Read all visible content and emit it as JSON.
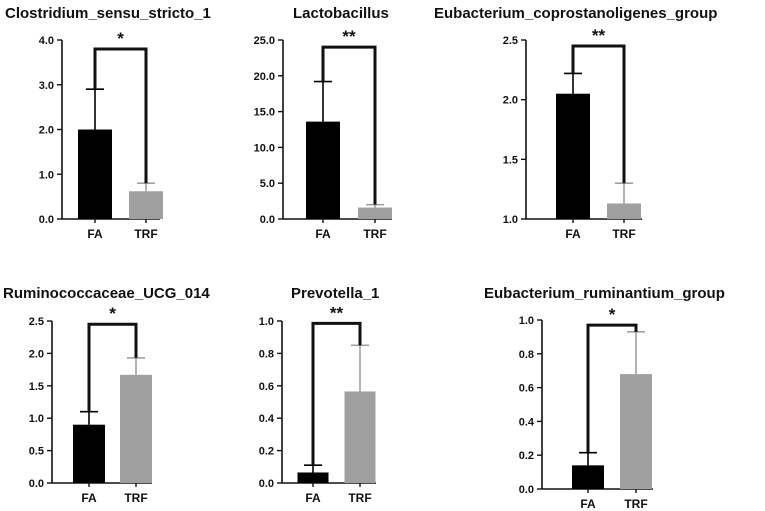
{
  "figure": {
    "colors": {
      "FA": "#000000",
      "TRF": "#a0a0a0",
      "axis": "#111111",
      "background": "#ffffff"
    }
  },
  "chart_data": [
    {
      "type": "bar",
      "title": "Clostridium_sensu_stricto_1",
      "categories": [
        "FA",
        "TRF"
      ],
      "values": [
        2.0,
        0.62
      ],
      "errors": [
        0.9,
        0.18
      ],
      "ylim": [
        0,
        4.0
      ],
      "yticks": [
        0,
        1,
        2,
        3,
        4
      ],
      "ytick_labels": [
        "0.0",
        "1.0",
        "2.0",
        "3.0",
        "4.0"
      ],
      "significance": "*",
      "bracket_y": 3.8,
      "xlabel": "",
      "ylabel": "",
      "grid": false
    },
    {
      "type": "bar",
      "title": "Lactobacillus",
      "categories": [
        "FA",
        "TRF"
      ],
      "values": [
        13.6,
        1.6
      ],
      "errors": [
        5.6,
        0.4
      ],
      "ylim": [
        0,
        25.0
      ],
      "yticks": [
        0,
        5,
        10,
        15,
        20,
        25
      ],
      "ytick_labels": [
        "0.0",
        "5.0",
        "10.0",
        "15.0",
        "20.0",
        "25.0"
      ],
      "significance": "**",
      "bracket_y": 24.0,
      "xlabel": "",
      "ylabel": "",
      "grid": false
    },
    {
      "type": "bar",
      "title": "Eubacterium_coprostanoligenes_group",
      "categories": [
        "FA",
        "TRF"
      ],
      "values": [
        2.05,
        1.13
      ],
      "errors": [
        0.17,
        0.17
      ],
      "ylim": [
        1.0,
        2.5
      ],
      "yticks": [
        1.0,
        1.5,
        2.0,
        2.5
      ],
      "ytick_labels": [
        "1.0",
        "1.5",
        "2.0",
        "2.5"
      ],
      "significance": "**",
      "bracket_y": 2.45,
      "xlabel": "",
      "ylabel": "",
      "grid": false
    },
    {
      "type": "bar",
      "title": "Ruminococcaceae_UCG_014",
      "categories": [
        "FA",
        "TRF"
      ],
      "values": [
        0.9,
        1.67
      ],
      "errors": [
        0.2,
        0.26
      ],
      "ylim": [
        0,
        2.5
      ],
      "yticks": [
        0,
        0.5,
        1.0,
        1.5,
        2.0,
        2.5
      ],
      "ytick_labels": [
        "0.0",
        "0.5",
        "1.0",
        "1.5",
        "2.0",
        "2.5"
      ],
      "significance": "*",
      "bracket_y": 2.45,
      "xlabel": "",
      "ylabel": "",
      "grid": false
    },
    {
      "type": "bar",
      "title": "Prevotella_1",
      "categories": [
        "FA",
        "TRF"
      ],
      "values": [
        0.065,
        0.565
      ],
      "errors": [
        0.045,
        0.285
      ],
      "ylim": [
        0,
        1.0
      ],
      "yticks": [
        0,
        0.2,
        0.4,
        0.6,
        0.8,
        1.0
      ],
      "ytick_labels": [
        "0.0",
        "0.2",
        "0.4",
        "0.6",
        "0.8",
        "1.0"
      ],
      "significance": "**",
      "bracket_y": 0.985,
      "xlabel": "",
      "ylabel": "",
      "grid": false
    },
    {
      "type": "bar",
      "title": "Eubacterium_ruminantium_group",
      "categories": [
        "FA",
        "TRF"
      ],
      "values": [
        0.14,
        0.68
      ],
      "errors": [
        0.075,
        0.25
      ],
      "ylim": [
        0,
        1.0
      ],
      "yticks": [
        0,
        0.2,
        0.4,
        0.6,
        0.8,
        1.0
      ],
      "ytick_labels": [
        "0.0",
        "0.2",
        "0.4",
        "0.6",
        "0.8",
        "1.0"
      ],
      "significance": "*",
      "bracket_y": 0.97,
      "xlabel": "",
      "ylabel": "",
      "grid": false
    }
  ]
}
